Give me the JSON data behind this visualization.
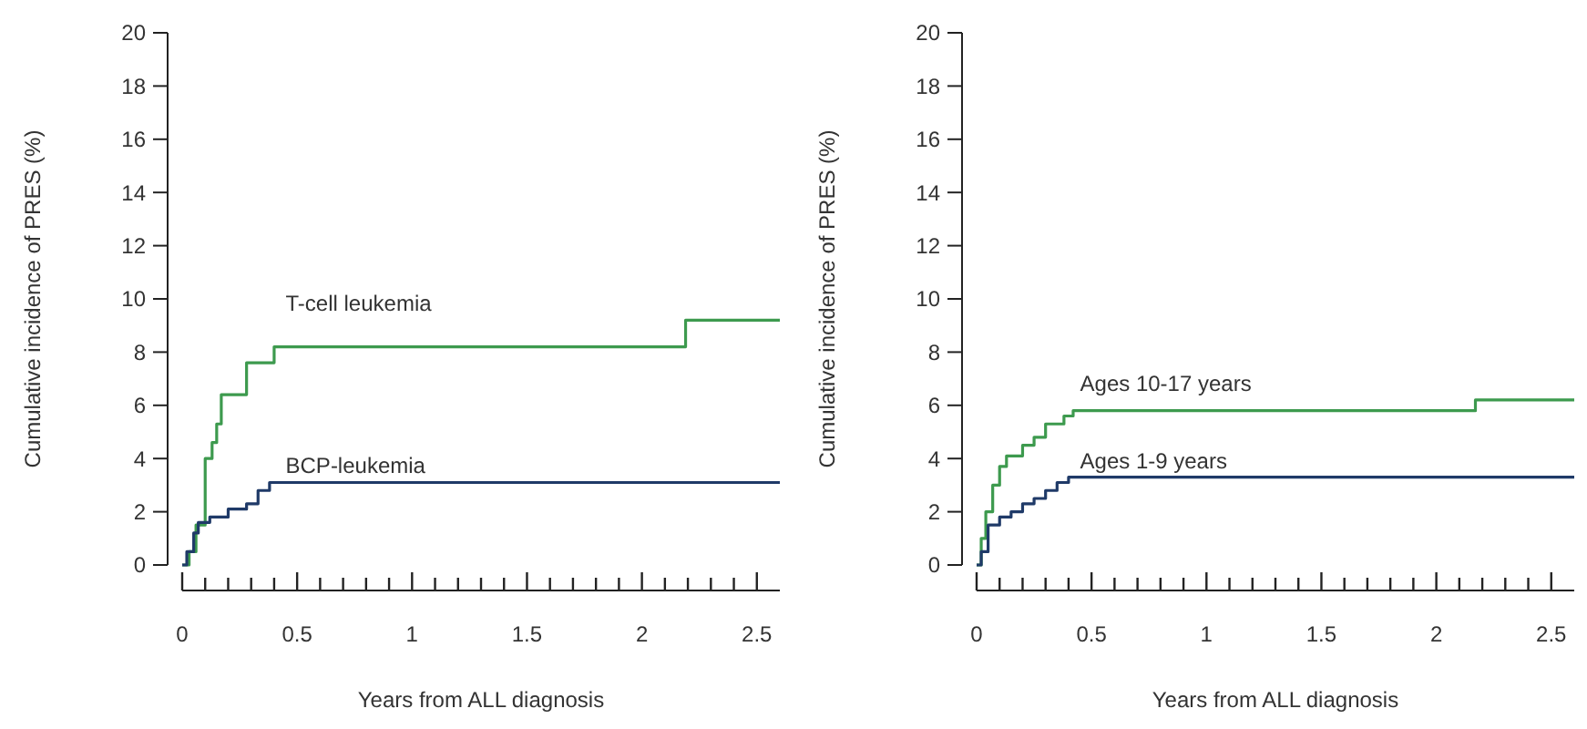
{
  "chart_data": [
    {
      "type": "step",
      "xlabel": "Years from ALL diagnosis",
      "ylabel": "Cumulative incidence of PRES (%)",
      "xlim": [
        0,
        2.6
      ],
      "ylim": [
        0,
        20
      ],
      "xticks": [
        0,
        {
          "value": 0.1,
          "label": null
        },
        {
          "value": 0.2,
          "label": null
        },
        {
          "value": 0.3,
          "label": null
        },
        {
          "value": 0.4,
          "label": null
        },
        0.5,
        {
          "value": 0.6,
          "label": null
        },
        {
          "value": 0.7,
          "label": null
        },
        {
          "value": 0.8,
          "label": null
        },
        {
          "value": 0.9,
          "label": null
        },
        1,
        {
          "value": 1.1,
          "label": null
        },
        {
          "value": 1.2,
          "label": null
        },
        {
          "value": 1.3,
          "label": null
        },
        {
          "value": 1.4,
          "label": null
        },
        1.5,
        {
          "value": 1.6,
          "label": null
        },
        {
          "value": 1.7,
          "label": null
        },
        {
          "value": 1.8,
          "label": null
        },
        {
          "value": 1.9,
          "label": null
        },
        2,
        {
          "value": 2.1,
          "label": null
        },
        {
          "value": 2.2,
          "label": null
        },
        {
          "value": 2.3,
          "label": null
        },
        {
          "value": 2.4,
          "label": null
        },
        2.5
      ],
      "yticks": [
        0,
        2,
        4,
        6,
        8,
        10,
        12,
        14,
        16,
        18,
        20
      ],
      "series": [
        {
          "name": "T-cell leukemia",
          "color": "#3d9a4e",
          "x": [
            0,
            0.03,
            0.06,
            0.1,
            0.13,
            0.15,
            0.17,
            0.28,
            0.33,
            0.4,
            2.19,
            2.6
          ],
          "values": [
            0,
            0.5,
            1.5,
            4,
            4.6,
            5.3,
            6.4,
            7.6,
            7.6,
            8.2,
            9.2,
            9.2
          ]
        },
        {
          "name": "BCP-leukemia",
          "color": "#1f3a68",
          "x": [
            0,
            0.02,
            0.05,
            0.07,
            0.12,
            0.2,
            0.28,
            0.33,
            0.38,
            2.6
          ],
          "values": [
            0,
            0.5,
            1.2,
            1.6,
            1.8,
            2.1,
            2.3,
            2.8,
            3.1,
            3.1
          ]
        }
      ]
    },
    {
      "type": "step",
      "xlabel": "Years from ALL diagnosis",
      "ylabel": "Cumulative incidence of PRES (%)",
      "xlim": [
        0,
        2.6
      ],
      "ylim": [
        0,
        20
      ],
      "xticks": [
        0,
        {
          "value": 0.1,
          "label": null
        },
        {
          "value": 0.2,
          "label": null
        },
        {
          "value": 0.3,
          "label": null
        },
        {
          "value": 0.4,
          "label": null
        },
        0.5,
        {
          "value": 0.6,
          "label": null
        },
        {
          "value": 0.7,
          "label": null
        },
        {
          "value": 0.8,
          "label": null
        },
        {
          "value": 0.9,
          "label": null
        },
        1,
        {
          "value": 1.1,
          "label": null
        },
        {
          "value": 1.2,
          "label": null
        },
        {
          "value": 1.3,
          "label": null
        },
        {
          "value": 1.4,
          "label": null
        },
        1.5,
        {
          "value": 1.6,
          "label": null
        },
        {
          "value": 1.7,
          "label": null
        },
        {
          "value": 1.8,
          "label": null
        },
        {
          "value": 1.9,
          "label": null
        },
        2,
        {
          "value": 2.1,
          "label": null
        },
        {
          "value": 2.2,
          "label": null
        },
        {
          "value": 2.3,
          "label": null
        },
        {
          "value": 2.4,
          "label": null
        },
        2.5
      ],
      "yticks": [
        0,
        2,
        4,
        6,
        8,
        10,
        12,
        14,
        16,
        18,
        20
      ],
      "series": [
        {
          "name": "Ages 10-17 years",
          "color": "#3d9a4e",
          "x": [
            0,
            0.02,
            0.04,
            0.07,
            0.1,
            0.13,
            0.2,
            0.25,
            0.3,
            0.38,
            0.42,
            2.17,
            2.6
          ],
          "values": [
            0,
            1,
            2,
            3,
            3.7,
            4.1,
            4.5,
            4.8,
            5.3,
            5.6,
            5.8,
            6.2,
            6.2
          ]
        },
        {
          "name": "Ages 1-9 years",
          "color": "#1f3a68",
          "x": [
            0,
            0.02,
            0.05,
            0.1,
            0.15,
            0.2,
            0.25,
            0.3,
            0.35,
            0.4,
            2.6
          ],
          "values": [
            0,
            0.5,
            1.5,
            1.8,
            2,
            2.3,
            2.5,
            2.8,
            3.1,
            3.3,
            3.3
          ]
        }
      ]
    }
  ]
}
